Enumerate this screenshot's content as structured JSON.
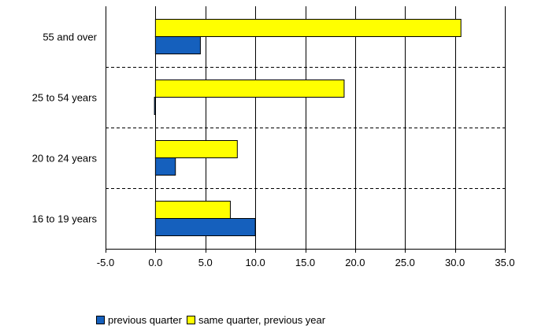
{
  "chart_data": {
    "type": "bar",
    "orientation": "horizontal",
    "categories": [
      "55 and over",
      "25 to 54 years",
      "20 to 24 years",
      "16 to 19 years"
    ],
    "series": [
      {
        "name": "same quarter, previous year",
        "values": [
          30.6,
          18.9,
          8.2,
          7.5
        ],
        "color": "#ffff00"
      },
      {
        "name": "previous quarter",
        "values": [
          4.5,
          -0.1,
          2.0,
          10.0
        ],
        "color": "#1560bd"
      }
    ],
    "xlim": [
      -5,
      35
    ],
    "xticks": [
      "-5.0",
      "0.0",
      "5.0",
      "10.0",
      "15.0",
      "20.0",
      "25.0",
      "30.0",
      "35.0"
    ],
    "grid": "vertical solid, horizontal dashed category separators",
    "legend_position": "bottom"
  },
  "legend": {
    "items": [
      {
        "label": "previous quarter",
        "color": "#1560bd"
      },
      {
        "label": "same quarter, previous year",
        "color": "#ffff00"
      }
    ]
  }
}
